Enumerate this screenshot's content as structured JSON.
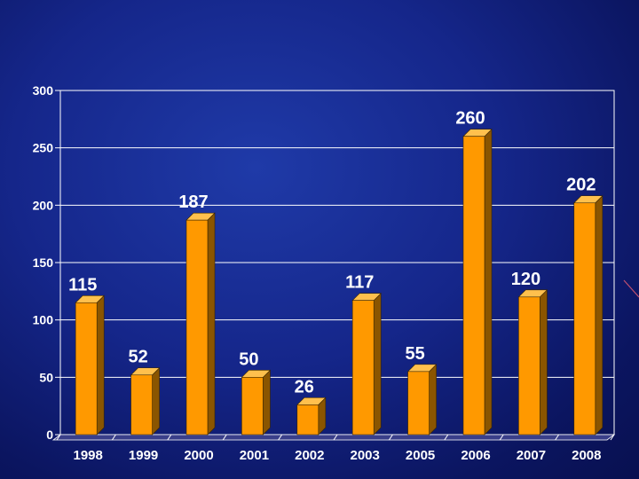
{
  "chart_data": {
    "type": "bar",
    "categories": [
      "1998",
      "1999",
      "2000",
      "2001",
      "2002",
      "2003",
      "2005",
      "2006",
      "2007",
      "2008"
    ],
    "values": [
      115,
      52,
      187,
      50,
      26,
      117,
      55,
      260,
      120,
      202
    ],
    "ylim": [
      0,
      300
    ],
    "yticks": [
      0,
      50,
      100,
      150,
      200,
      250,
      300
    ],
    "grid": true,
    "legend": "none"
  },
  "colors": {
    "bar_front": "#ff9900",
    "bar_side": "#8a5500",
    "bar_top": "#ffc04d",
    "grid": "#ffffff",
    "text": "#ffffff"
  }
}
